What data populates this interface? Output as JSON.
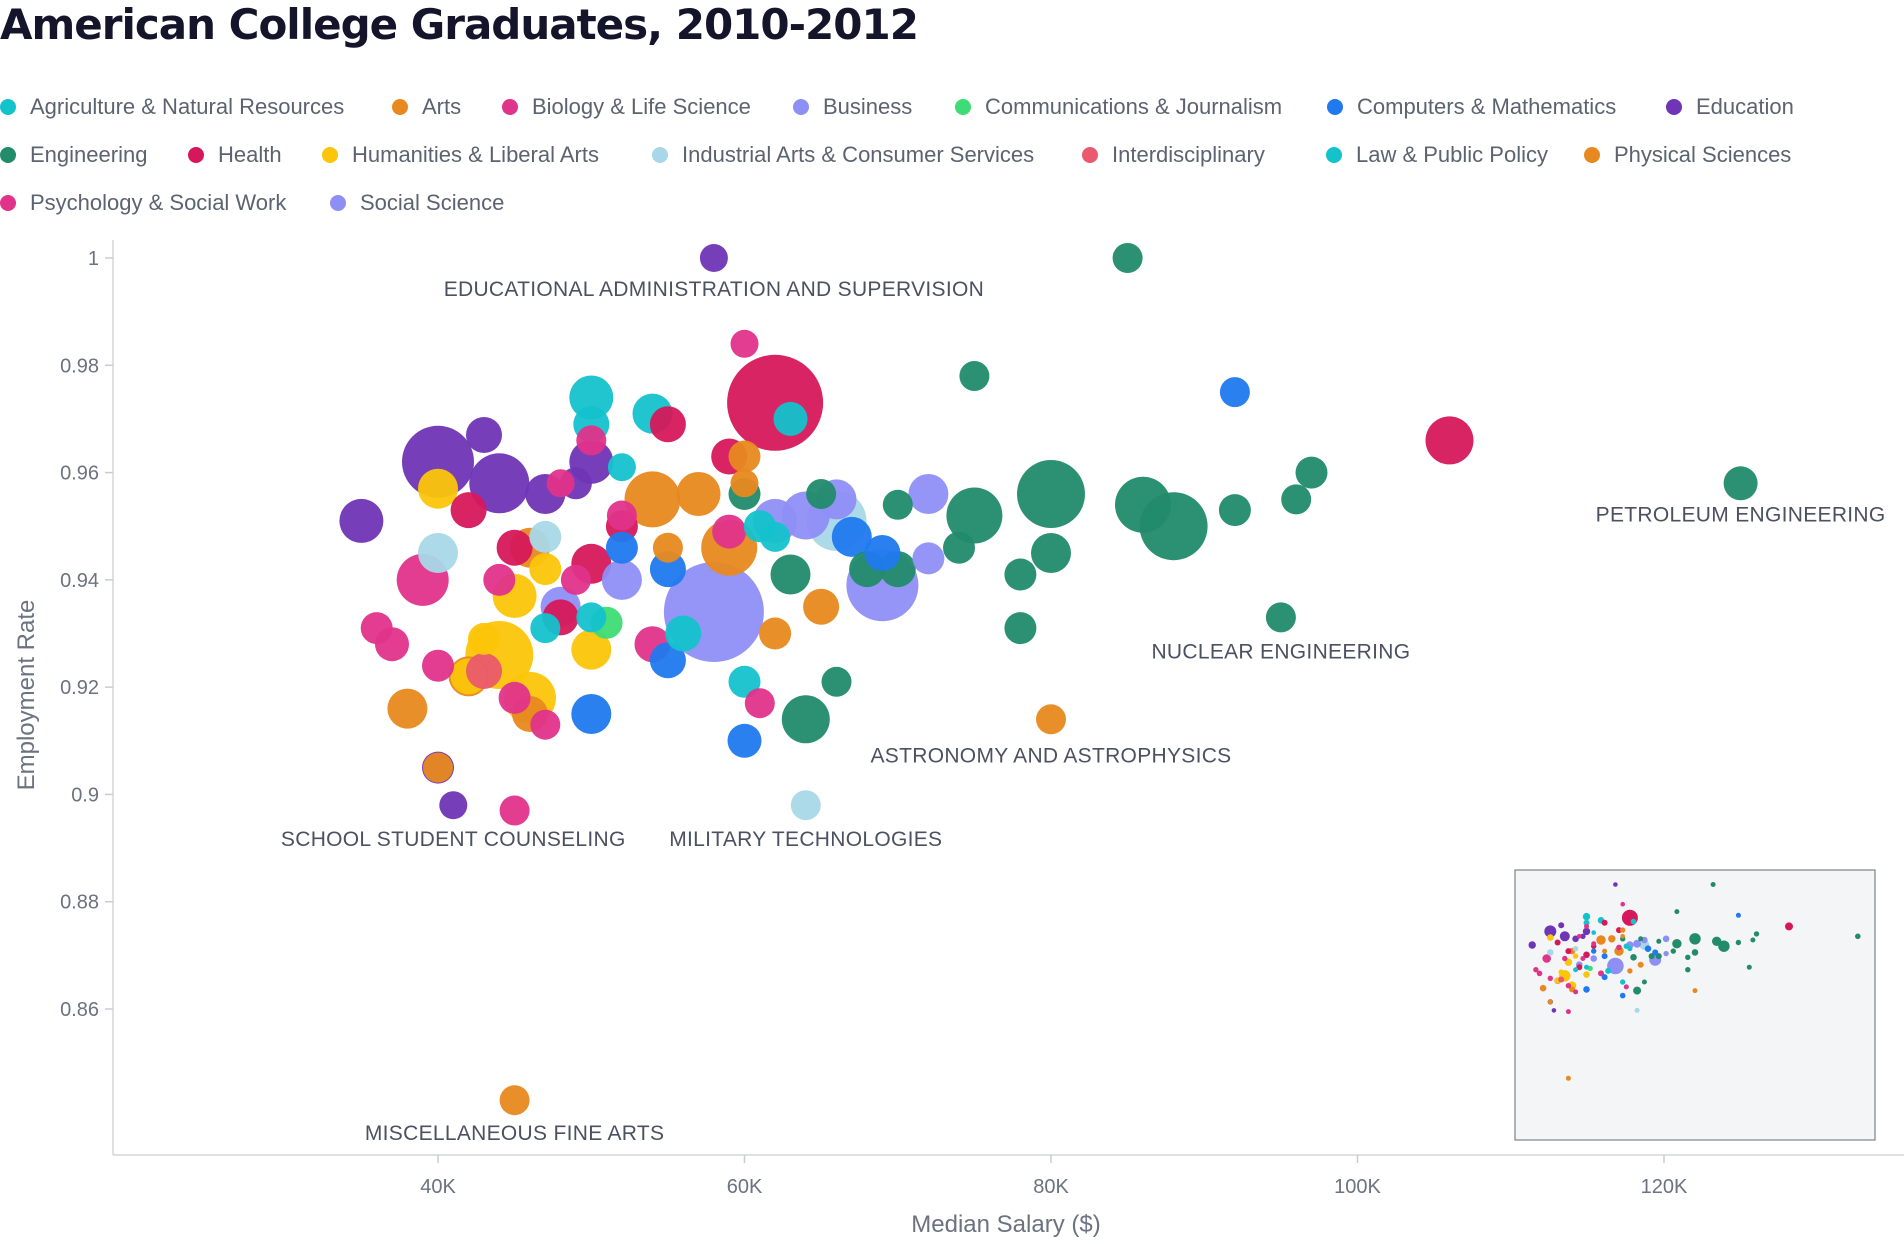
{
  "page": {
    "title": "American College Graduates, 2010-2012"
  },
  "legend": {
    "items": [
      {
        "label": "Agriculture & Natural Resources",
        "color": "#14c2cc"
      },
      {
        "label": "Arts",
        "color": "#e8891f"
      },
      {
        "label": "Biology & Life Science",
        "color": "#e0338a"
      },
      {
        "label": "Business",
        "color": "#8e8ff5"
      },
      {
        "label": "Communications & Journalism",
        "color": "#3ddc74"
      },
      {
        "label": "Computers & Mathematics",
        "color": "#2079ee"
      },
      {
        "label": "Education",
        "color": "#7034b6"
      },
      {
        "label": "Engineering",
        "color": "#218b6a"
      },
      {
        "label": "Health",
        "color": "#d6185a"
      },
      {
        "label": "Humanities & Liberal Arts",
        "color": "#fcc50a"
      },
      {
        "label": "Industrial Arts & Consumer Services",
        "color": "#a8d8e8"
      },
      {
        "label": "Interdisciplinary",
        "color": "#ea5a6c"
      },
      {
        "label": "Law & Public Policy",
        "color": "#14c2cc"
      },
      {
        "label": "Physical Sciences",
        "color": "#e8891f"
      },
      {
        "label": "Psychology & Social Work",
        "color": "#e0338a"
      },
      {
        "label": "Social Science",
        "color": "#8e8ff5"
      }
    ]
  },
  "chart_data": {
    "type": "scatter",
    "title": "American College Graduates, 2010-2012",
    "xlabel": "Median Salary ($)",
    "ylabel": "Employment Rate",
    "xlim": [
      20000,
      137000
    ],
    "ylim": [
      0.8335,
      1.004
    ],
    "x_ticks": [
      40000,
      60000,
      80000,
      100000,
      120000
    ],
    "x_tick_labels": [
      "40K",
      "60K",
      "80K",
      "100K",
      "120K"
    ],
    "y_ticks": [
      0.86,
      0.88,
      0.9,
      0.92,
      0.94,
      0.96,
      0.98,
      1
    ],
    "y_tick_labels": [
      "0.86",
      "0.88",
      "0.9",
      "0.92",
      "0.94",
      "0.96",
      "0.98",
      "1"
    ],
    "annotations": [
      {
        "text": "EDUCATIONAL ADMINISTRATION AND SUPERVISION",
        "x": 58000,
        "y": 1.0
      },
      {
        "text": "PETROLEUM ENGINEERING",
        "x": 125000,
        "y": 0.958
      },
      {
        "text": "NUCLEAR ENGINEERING",
        "x": 95000,
        "y": 0.933
      },
      {
        "text": "ASTRONOMY AND ASTROPHYSICS",
        "x": 80000,
        "y": 0.914
      },
      {
        "text": "MILITARY TECHNOLOGIES",
        "x": 64000,
        "y": 0.898
      },
      {
        "text": "SCHOOL STUDENT COUNSELING",
        "x": 41000,
        "y": 0.898
      },
      {
        "text": "MISCELLANEOUS FINE ARTS",
        "x": 45000,
        "y": 0.843
      }
    ],
    "series": [
      {
        "name": "Education",
        "points": [
          [
            58000,
            1.0,
            14
          ],
          [
            40000,
            0.962,
            36
          ],
          [
            43000,
            0.967,
            18
          ],
          [
            44000,
            0.958,
            30
          ],
          [
            35000,
            0.951,
            22
          ],
          [
            47000,
            0.956,
            20
          ],
          [
            50000,
            0.962,
            22
          ],
          [
            41000,
            0.898,
            14
          ],
          [
            40000,
            0.905,
            16
          ],
          [
            49000,
            0.958,
            16
          ]
        ]
      },
      {
        "name": "Engineering",
        "points": [
          [
            85000,
            1.0,
            15
          ],
          [
            75000,
            0.978,
            15
          ],
          [
            125000,
            0.958,
            17
          ],
          [
            97000,
            0.96,
            16
          ],
          [
            96000,
            0.955,
            15
          ],
          [
            92000,
            0.953,
            16
          ],
          [
            88000,
            0.95,
            34
          ],
          [
            86000,
            0.954,
            28
          ],
          [
            80000,
            0.956,
            34
          ],
          [
            80000,
            0.945,
            20
          ],
          [
            78000,
            0.941,
            16
          ],
          [
            78000,
            0.931,
            16
          ],
          [
            75000,
            0.952,
            28
          ],
          [
            74000,
            0.946,
            16
          ],
          [
            70000,
            0.954,
            15
          ],
          [
            70000,
            0.942,
            18
          ],
          [
            65000,
            0.956,
            15
          ],
          [
            63000,
            0.941,
            20
          ],
          [
            64000,
            0.914,
            24
          ],
          [
            66000,
            0.921,
            15
          ],
          [
            68000,
            0.942,
            18
          ],
          [
            95000,
            0.933,
            15
          ],
          [
            60000,
            0.956,
            16
          ]
        ]
      },
      {
        "name": "Health",
        "points": [
          [
            62000,
            0.973,
            48
          ],
          [
            106000,
            0.966,
            24
          ],
          [
            55000,
            0.969,
            18
          ],
          [
            59000,
            0.963,
            18
          ],
          [
            42000,
            0.953,
            18
          ],
          [
            45000,
            0.946,
            18
          ],
          [
            50000,
            0.943,
            20
          ],
          [
            48000,
            0.933,
            18
          ],
          [
            52000,
            0.95,
            16
          ]
        ]
      },
      {
        "name": "Humanities & Liberal Arts",
        "points": [
          [
            40000,
            0.957,
            20
          ],
          [
            45000,
            0.937,
            22
          ],
          [
            44000,
            0.926,
            34
          ],
          [
            46000,
            0.918,
            26
          ],
          [
            50000,
            0.927,
            20
          ],
          [
            42000,
            0.922,
            18
          ],
          [
            47000,
            0.942,
            16
          ],
          [
            43000,
            0.929,
            16
          ]
        ]
      },
      {
        "name": "Arts",
        "points": [
          [
            45000,
            0.843,
            15
          ],
          [
            38000,
            0.916,
            20
          ],
          [
            40000,
            0.905,
            15
          ],
          [
            42000,
            0.922,
            20
          ],
          [
            46000,
            0.915,
            18
          ],
          [
            54000,
            0.955,
            28
          ],
          [
            57000,
            0.956,
            22
          ],
          [
            59000,
            0.946,
            28
          ],
          [
            60000,
            0.963,
            16
          ],
          [
            60000,
            0.958,
            14
          ],
          [
            62000,
            0.93,
            16
          ],
          [
            65000,
            0.935,
            18
          ],
          [
            80000,
            0.914,
            15
          ],
          [
            55000,
            0.946,
            15
          ],
          [
            46000,
            0.946,
            20
          ]
        ]
      },
      {
        "name": "Business",
        "points": [
          [
            58000,
            0.934,
            50
          ],
          [
            69000,
            0.939,
            36
          ],
          [
            64000,
            0.952,
            24
          ],
          [
            66000,
            0.955,
            20
          ],
          [
            72000,
            0.956,
            20
          ],
          [
            72000,
            0.944,
            16
          ],
          [
            52000,
            0.94,
            20
          ],
          [
            62000,
            0.951,
            22
          ],
          [
            48000,
            0.935,
            20
          ]
        ]
      },
      {
        "name": "Biology & Life Science",
        "points": [
          [
            60000,
            0.984,
            14
          ],
          [
            50000,
            0.966,
            15
          ],
          [
            48000,
            0.958,
            14
          ],
          [
            39000,
            0.94,
            26
          ],
          [
            37000,
            0.928,
            17
          ],
          [
            36000,
            0.931,
            16
          ],
          [
            40000,
            0.924,
            16
          ],
          [
            45000,
            0.918,
            16
          ],
          [
            47000,
            0.913,
            15
          ],
          [
            45000,
            0.897,
            15
          ],
          [
            61000,
            0.917,
            15
          ],
          [
            52000,
            0.952,
            15
          ],
          [
            54000,
            0.928,
            18
          ],
          [
            59000,
            0.949,
            17
          ],
          [
            49000,
            0.94,
            15
          ],
          [
            44000,
            0.94,
            16
          ]
        ]
      },
      {
        "name": "Computers & Mathematics",
        "points": [
          [
            92000,
            0.975,
            15
          ],
          [
            67000,
            0.948,
            20
          ],
          [
            69000,
            0.945,
            18
          ],
          [
            55000,
            0.942,
            18
          ],
          [
            55000,
            0.925,
            18
          ],
          [
            60000,
            0.91,
            17
          ],
          [
            50000,
            0.915,
            20
          ],
          [
            52000,
            0.946,
            16
          ]
        ]
      },
      {
        "name": "Agriculture & Natural Resources",
        "points": [
          [
            50000,
            0.974,
            22
          ],
          [
            50000,
            0.969,
            18
          ],
          [
            54000,
            0.971,
            20
          ],
          [
            63000,
            0.97,
            17
          ],
          [
            52000,
            0.961,
            14
          ],
          [
            61000,
            0.95,
            16
          ],
          [
            62000,
            0.948,
            15
          ],
          [
            56000,
            0.93,
            18
          ],
          [
            60000,
            0.921,
            16
          ],
          [
            50000,
            0.933,
            15
          ],
          [
            47000,
            0.931,
            15
          ]
        ]
      },
      {
        "name": "Industrial Arts & Consumer Services",
        "points": [
          [
            40000,
            0.945,
            20
          ],
          [
            47000,
            0.948,
            16
          ],
          [
            64000,
            0.898,
            15
          ],
          [
            66000,
            0.951,
            30
          ]
        ]
      },
      {
        "name": "Interdisciplinary",
        "points": [
          [
            43000,
            0.923,
            18
          ]
        ]
      },
      {
        "name": "Communications & Journalism",
        "points": [
          [
            51000,
            0.932,
            16
          ]
        ]
      }
    ]
  }
}
